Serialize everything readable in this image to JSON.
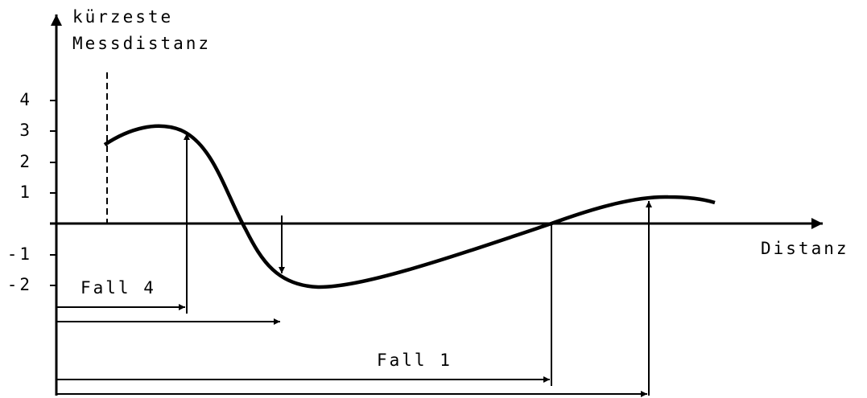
{
  "axis": {
    "y_label_lines": [
      "kürzeste",
      "Messdistanz"
    ],
    "x_label": "Distanz",
    "y_ticks": [
      "4",
      "3",
      "2",
      "1",
      "-1",
      "-2"
    ]
  },
  "cases": [
    "Fall 4",
    "Fall 1"
  ]
}
